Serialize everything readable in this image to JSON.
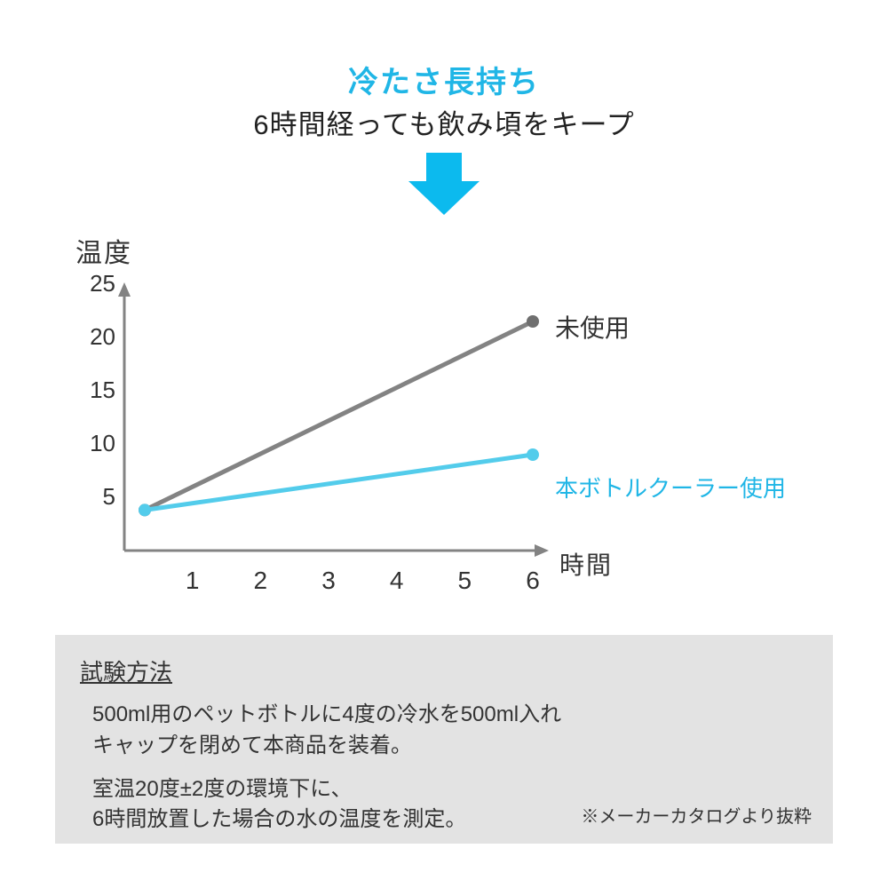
{
  "colors": {
    "accent": "#20b6e6",
    "text": "#333333",
    "subtext": "#222222",
    "series_unused": "#838383",
    "series_cooler": "#53cceb",
    "marker_unused": "#6f6f6f",
    "marker_cooler": "#53cceb",
    "axis": "#838383",
    "method_bg": "#e3e3e3",
    "method_text": "#333333",
    "arrow_fill": "#0cbaee",
    "bg": "#ffffff"
  },
  "headline": {
    "accent": "冷たさ長持ち",
    "sub": "6時間経っても飲み頃をキープ"
  },
  "chart": {
    "type": "line",
    "y_axis_title": "温度",
    "x_axis_title": "時間",
    "ylim": [
      0,
      25
    ],
    "xlim": [
      0,
      6
    ],
    "y_ticks": [
      5,
      10,
      15,
      20,
      25
    ],
    "x_ticks": [
      1,
      2,
      3,
      4,
      5,
      6
    ],
    "axis_width": 3,
    "line_width": 5,
    "marker_radius": 7,
    "tick_fontsize": 26,
    "axis_title_fontsize": 30,
    "series": [
      {
        "key": "unused",
        "label": "未使用",
        "label_color": "#333333",
        "color": "#838383",
        "marker_color": "#6f6f6f",
        "points": [
          [
            0.3,
            3.8
          ],
          [
            6,
            21.5
          ]
        ]
      },
      {
        "key": "cooler",
        "label": "本ボトルクーラー使用",
        "label_color": "#20b6e6",
        "color": "#53cceb",
        "marker_color": "#53cceb",
        "points": [
          [
            0.3,
            3.8
          ],
          [
            6,
            9.0
          ]
        ]
      }
    ]
  },
  "method": {
    "title": "試験方法",
    "para1_l1": "500ml用のペットボトルに4度の冷水を500ml入れ",
    "para1_l2": "キャップを閉めて本商品を装着。",
    "para2_l1": "室温20度±2度の環境下に、",
    "para2_l2": "6時間放置した場合の水の温度を測定。",
    "note": "※メーカーカタログより抜粋"
  }
}
